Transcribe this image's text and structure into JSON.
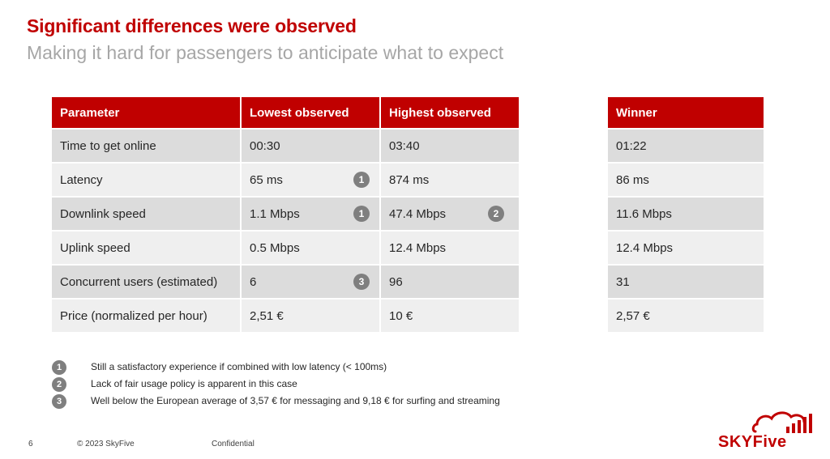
{
  "header": {
    "title": "Significant differences were observed",
    "subtitle": "Making it hard for passengers to anticipate what to expect"
  },
  "table": {
    "headers": [
      "Parameter",
      "Lowest observed",
      "Highest observed"
    ],
    "rows": [
      {
        "param": "Time to get online",
        "lowest": "00:30",
        "lowest_note": "",
        "highest": "03:40",
        "highest_note": ""
      },
      {
        "param": "Latency",
        "lowest": "65 ms",
        "lowest_note": "1",
        "highest": "874 ms",
        "highest_note": ""
      },
      {
        "param": "Downlink speed",
        "lowest": "1.1 Mbps",
        "lowest_note": "1",
        "highest": "47.4 Mbps",
        "highest_note": "2"
      },
      {
        "param": "Uplink speed",
        "lowest": "0.5 Mbps",
        "lowest_note": "",
        "highest": "12.4 Mbps",
        "highest_note": ""
      },
      {
        "param": "Concurrent users (estimated)",
        "lowest": "6",
        "lowest_note": "3",
        "highest": "96",
        "highest_note": ""
      },
      {
        "param": "Price (normalized per hour)",
        "lowest": "2,51 €",
        "lowest_note": "",
        "highest": "10 €",
        "highest_note": ""
      }
    ]
  },
  "winner": {
    "header": "Winner",
    "values": [
      "01:22",
      "86 ms",
      "11.6 Mbps",
      "12.4 Mbps",
      "31",
      "2,57 €"
    ]
  },
  "notes": [
    {
      "num": "1",
      "text": "Still a satisfactory experience if combined with low latency (< 100ms)"
    },
    {
      "num": "2",
      "text": "Lack of fair usage policy is apparent in this case"
    },
    {
      "num": "3",
      "text": "Well below the European average of 3,57 € for messaging and 9,18 € for surfing and streaming"
    }
  ],
  "footer": {
    "page": "6",
    "copyright": "© 2023 SkyFive",
    "confidential": "Confidential"
  },
  "logo": {
    "text": "SKYFive",
    "accent_color": "#c00000"
  }
}
